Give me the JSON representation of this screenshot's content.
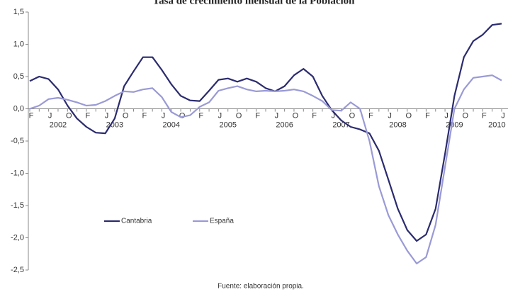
{
  "chart_data": {
    "type": "line",
    "title": "Tasa de crecimiento mensual de la Población",
    "source": "Fuente: elaboración propia.",
    "categories": [
      "F",
      null,
      "J",
      null,
      "O",
      null,
      "F",
      null,
      "J",
      null,
      "O",
      null,
      "F",
      null,
      "J",
      null,
      "O",
      null,
      "F",
      null,
      "J",
      null,
      "O",
      null,
      "F",
      null,
      "J",
      null,
      "O",
      null,
      "F",
      null,
      "J",
      null,
      "O",
      null,
      "F",
      null,
      "J",
      null,
      "O",
      null,
      "F",
      null,
      "J",
      null,
      "O",
      null,
      "F",
      null,
      "J"
    ],
    "year_labels": [
      "2002",
      "2003",
      "2004",
      "2005",
      "2006",
      "2007",
      "2008",
      "2009",
      "2010"
    ],
    "series": [
      {
        "name": "Cantabria",
        "color": "#2b2b6f",
        "values": [
          0.43,
          0.5,
          0.46,
          0.3,
          0.05,
          -0.15,
          -0.28,
          -0.37,
          -0.38,
          -0.15,
          0.35,
          0.58,
          0.8,
          0.8,
          0.6,
          0.38,
          0.2,
          0.13,
          0.12,
          0.28,
          0.45,
          0.47,
          0.42,
          0.47,
          0.42,
          0.32,
          0.27,
          0.35,
          0.52,
          0.62,
          0.5,
          0.2,
          -0.02,
          -0.18,
          -0.28,
          -0.32,
          -0.38,
          -0.65,
          -1.1,
          -1.55,
          -1.88,
          -2.05,
          -1.95,
          -1.55,
          -0.7,
          0.2,
          0.8,
          1.05,
          1.15,
          1.3,
          1.32
        ]
      },
      {
        "name": "España",
        "color": "#9a9ad6",
        "values": [
          0.0,
          0.05,
          0.15,
          0.17,
          0.14,
          0.1,
          0.05,
          0.06,
          0.12,
          0.2,
          0.27,
          0.26,
          0.3,
          0.32,
          0.18,
          -0.05,
          -0.13,
          -0.1,
          0.03,
          0.1,
          0.28,
          0.32,
          0.35,
          0.3,
          0.27,
          0.28,
          0.27,
          0.28,
          0.3,
          0.27,
          0.2,
          0.12,
          -0.02,
          -0.03,
          0.1,
          0.0,
          -0.5,
          -1.2,
          -1.65,
          -1.95,
          -2.2,
          -2.4,
          -2.3,
          -1.8,
          -0.9,
          0.0,
          0.3,
          0.48,
          0.5,
          0.52,
          0.44
        ]
      }
    ],
    "ylim": [
      -2.5,
      1.5
    ],
    "yticks": [
      {
        "value": 1.5,
        "label": "1,5"
      },
      {
        "value": 1,
        "label": "1,0"
      },
      {
        "value": 0.5,
        "label": "0,5"
      },
      {
        "value": 0,
        "label": "0,0"
      },
      {
        "value": -0.5,
        "label": "-0,5"
      },
      {
        "value": -1,
        "label": "-1,0"
      },
      {
        "value": -1.5,
        "label": "-1,5"
      },
      {
        "value": -2,
        "label": "-2,0"
      },
      {
        "value": -2.5,
        "label": "-2,5"
      }
    ],
    "grid": false,
    "legend": "lower left"
  }
}
